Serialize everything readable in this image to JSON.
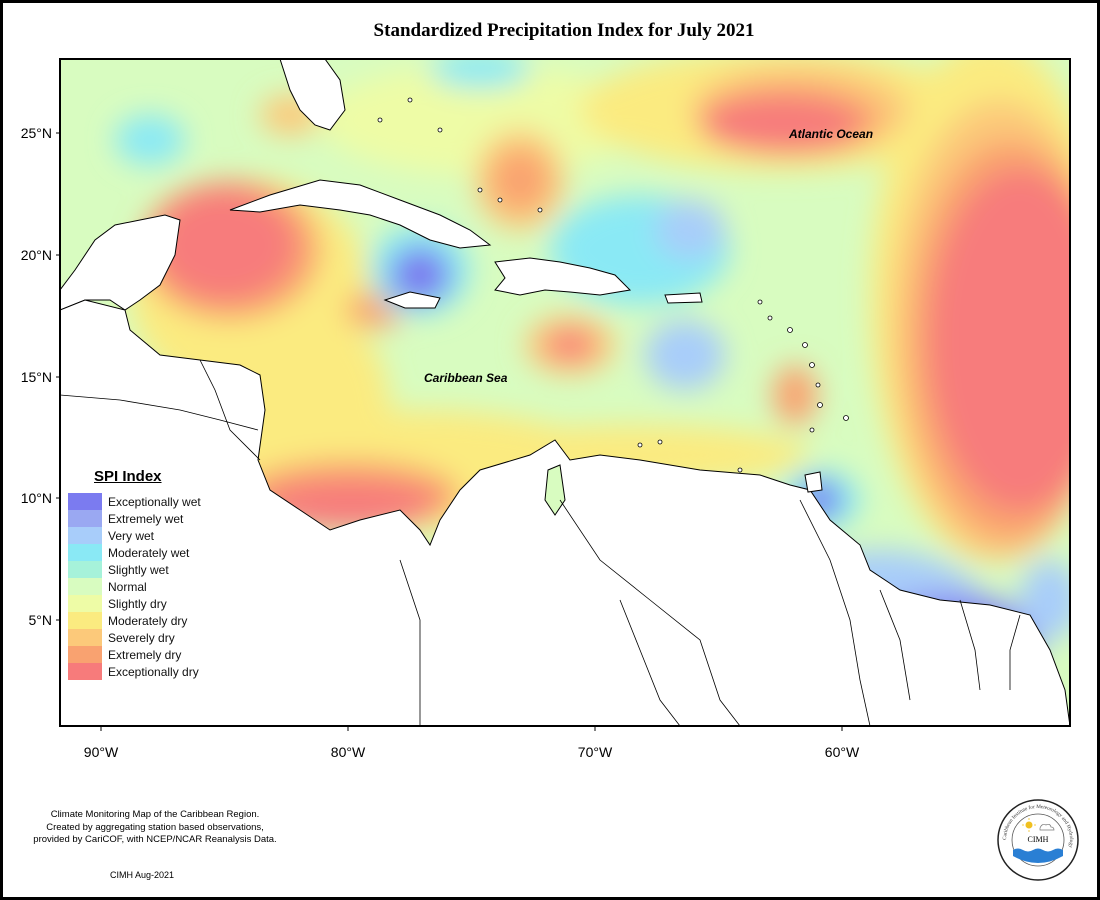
{
  "title": "Standardized Precipitation Index for July 2021",
  "axes": {
    "y_ticks": [
      "25°N",
      "20°N",
      "15°N",
      "10°N",
      "5°N"
    ],
    "x_ticks": [
      "90°W",
      "80°W",
      "70°W",
      "60°W"
    ]
  },
  "map_labels": {
    "atlantic": "Atlantic Ocean",
    "caribbean": "Caribbean Sea"
  },
  "legend": {
    "title": "SPI Index",
    "items": [
      {
        "label": "Exceptionally wet",
        "color": "#7b7bf0"
      },
      {
        "label": "Extremely wet",
        "color": "#9aa8f2"
      },
      {
        "label": "Very wet",
        "color": "#a8cdfa"
      },
      {
        "label": "Moderately wet",
        "color": "#8ae9f5"
      },
      {
        "label": "Slightly wet",
        "color": "#a6f2da"
      },
      {
        "label": "Normal",
        "color": "#d8fcc0"
      },
      {
        "label": "Slightly dry",
        "color": "#eefca6"
      },
      {
        "label": "Moderately dry",
        "color": "#fbeb80"
      },
      {
        "label": "Severely dry",
        "color": "#fcc97a"
      },
      {
        "label": "Extremely dry",
        "color": "#f9a270"
      },
      {
        "label": "Exceptionally dry",
        "color": "#f77b7b"
      }
    ]
  },
  "credit": {
    "line1": "Climate Monitoring Map of the Caribbean Region.",
    "line2": "Created by aggregating station based observations,",
    "line3": "provided by CariCOF, with NCEP/NCAR Reanalysis Data."
  },
  "stamp": "CIMH Aug-2021",
  "logo": {
    "center_text": "CIMH",
    "ring_text": "Caribbean Institute for Meteorology and Hydrology"
  }
}
